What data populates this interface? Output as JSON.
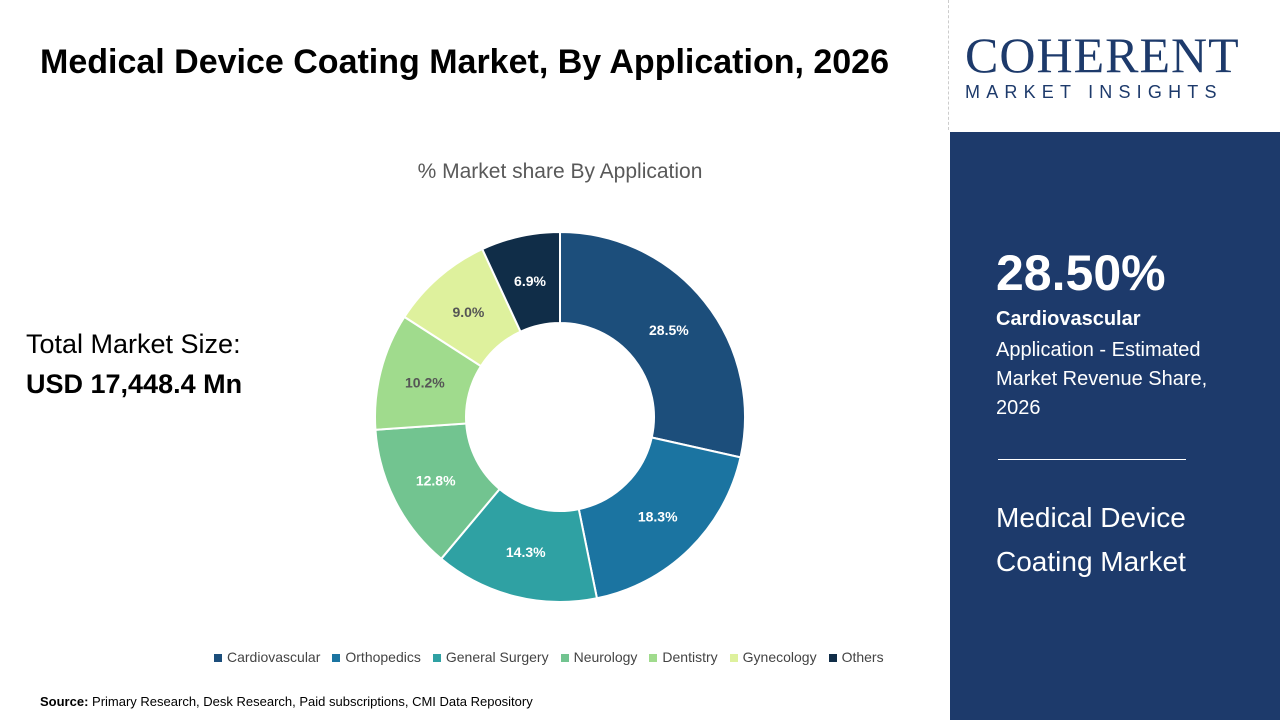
{
  "header": {
    "title": "Medical Device Coating Market, By Application, 2026"
  },
  "total": {
    "label": "Total Market Size:",
    "value": "USD 17,448.4 Mn"
  },
  "chart_data": {
    "type": "pie",
    "donut": true,
    "title": "% Market share By Application",
    "categories": [
      "Cardiovascular",
      "Orthopedics",
      "General Surgery",
      "Neurology",
      "Dentistry",
      "Gynecology",
      "Others"
    ],
    "values": [
      28.5,
      18.3,
      14.3,
      12.8,
      10.2,
      9.0,
      6.9
    ],
    "labels": [
      "28.5%",
      "18.3%",
      "14.3%",
      "12.8%",
      "10.2%",
      "9.0%",
      "6.9%"
    ],
    "colors": [
      "#1c4e7b",
      "#1b74a1",
      "#2fa1a3",
      "#72c490",
      "#a0db8d",
      "#def19d",
      "#102d48"
    ],
    "legend_position": "bottom"
  },
  "source": {
    "label": "Source:",
    "text": " Primary Research, Desk Research, Paid subscriptions, CMI Data Repository"
  },
  "logo": {
    "brand": "COHERENT",
    "tagline": "MARKET INSIGHTS"
  },
  "panel": {
    "percent": "28.50%",
    "segment": "Cardiovascular",
    "description": "Application - Estimated Market Revenue Share, 2026",
    "market": "Medical Device Coating Market"
  }
}
